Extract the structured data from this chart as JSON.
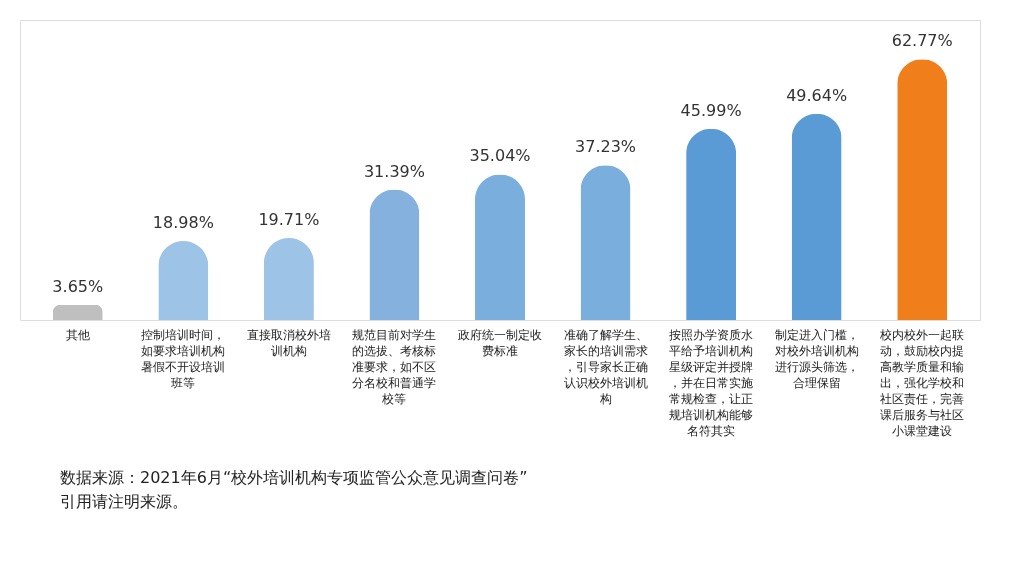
{
  "chart_data": {
    "type": "bar",
    "categories": [
      "其他",
      "控制培训时间，如要求培训机构暑假不开设培训班等",
      "直接取消校外培训机构",
      "规范目前对学生的选拔、考核标准要求，如不区分名校和普通学校等",
      "政府统一制定收费标准",
      "准确了解学生、家长的培训需求，引导家长正确认识校外培训机构",
      "按照办学资质水平给予培训机构星级评定并授牌，并在日常实施常规检查，让正规培训机构能够名符其实",
      "制定进入门槛，对校外培训机构进行源头筛选，合理保留",
      "校内校外一起联动，鼓励校内提高教学质量和输出，强化学校和社区责任，完善课后服务与社区小课堂建设"
    ],
    "values": [
      3.65,
      18.98,
      19.71,
      31.39,
      35.04,
      37.23,
      45.99,
      49.64,
      62.77
    ],
    "value_labels": [
      "3.65%",
      "18.98%",
      "19.71%",
      "31.39%",
      "35.04%",
      "37.23%",
      "45.99%",
      "49.64%",
      "62.77%"
    ],
    "colors": [
      "#bfbfbf",
      "#9dc3e6",
      "#9dc3e6",
      "#84b1de",
      "#7aaedd",
      "#7aaedd",
      "#5b9bd5",
      "#5b9bd5",
      "#f07e1a"
    ],
    "annotations": [
      "数据来源：2021年6月“校外培训机构专项监管公众意见调查问卷”",
      "引用请注明来源。"
    ]
  }
}
